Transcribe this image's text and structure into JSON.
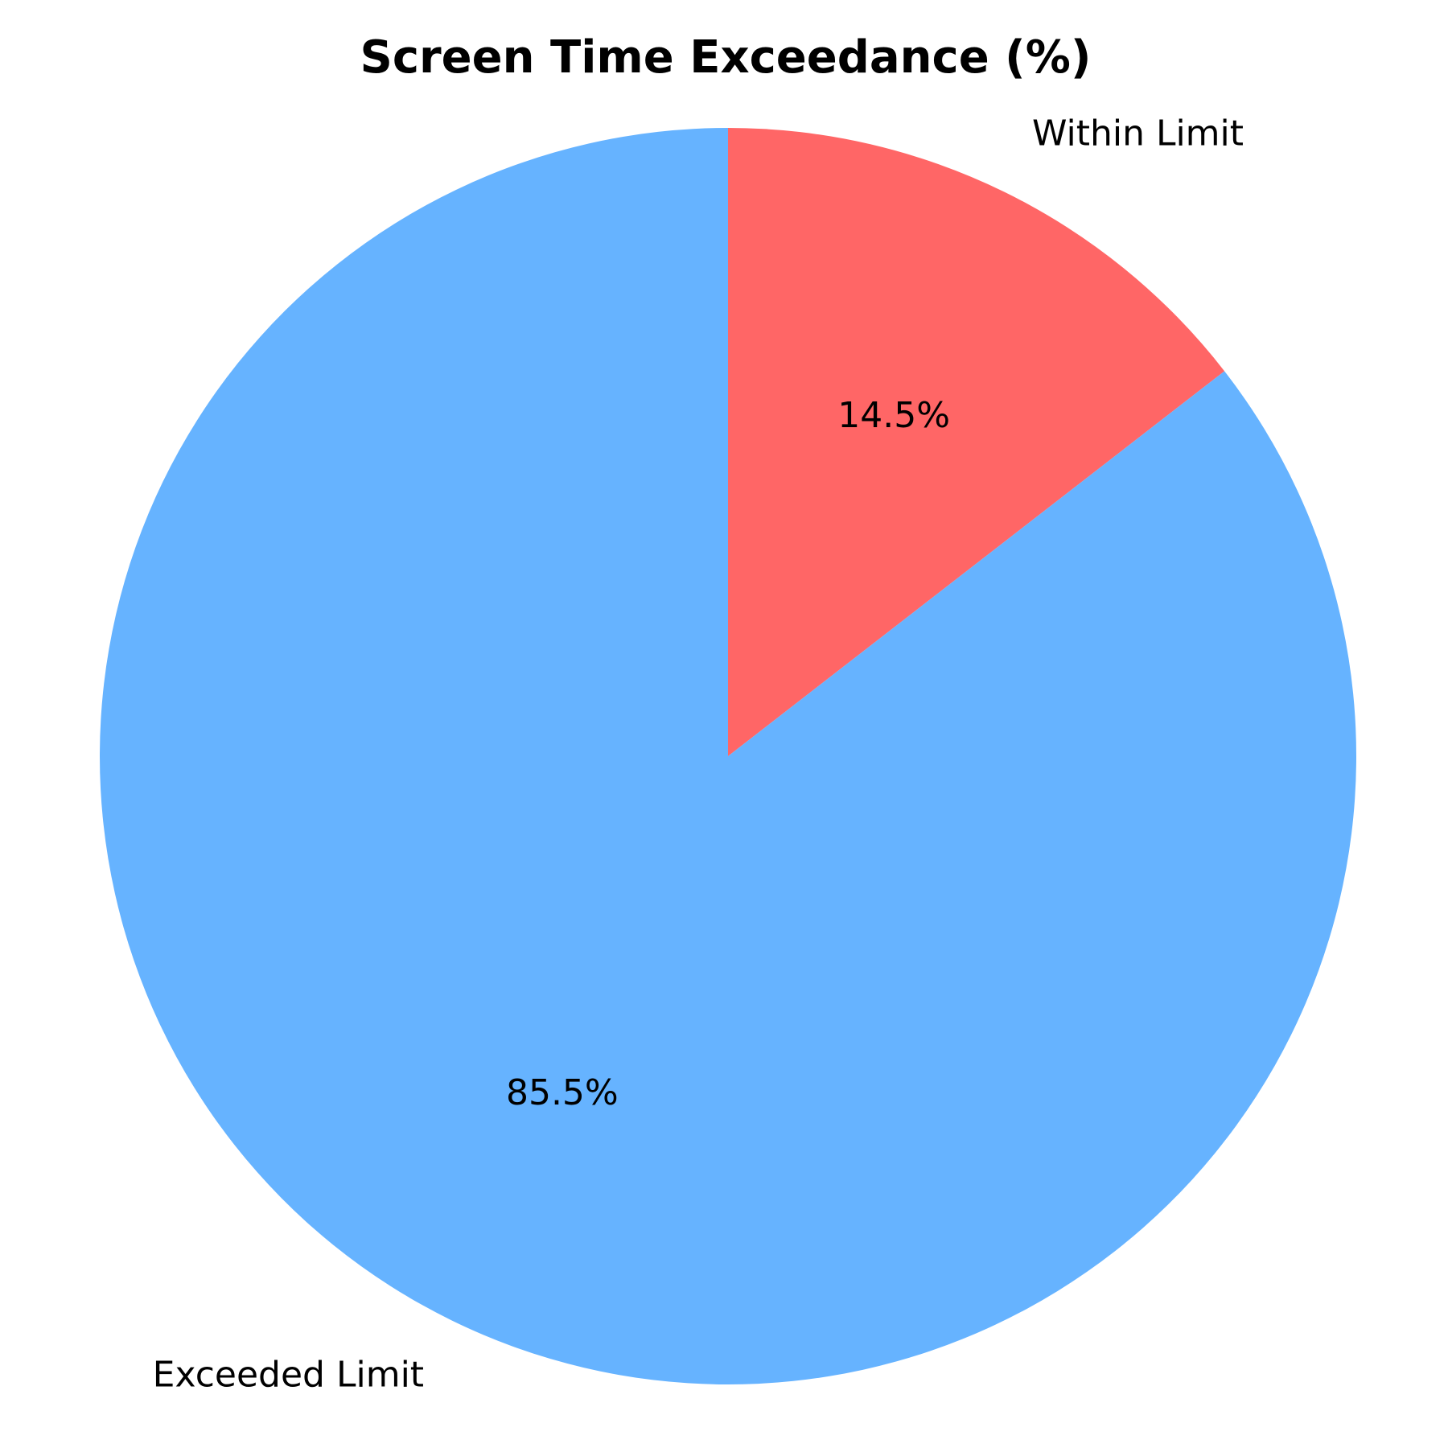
{
  "chart_data": {
    "type": "pie",
    "title": "Screen Time Exceedance (%)",
    "labels": [
      "Within Limit",
      "Exceeded Limit"
    ],
    "values": [
      14.5,
      85.5
    ],
    "percent_labels": [
      "14.5%",
      "85.5%"
    ],
    "colors": [
      "#ff6666",
      "#66b3ff"
    ],
    "start_angle_deg": 90,
    "direction": "clockwise",
    "legend": "none"
  }
}
